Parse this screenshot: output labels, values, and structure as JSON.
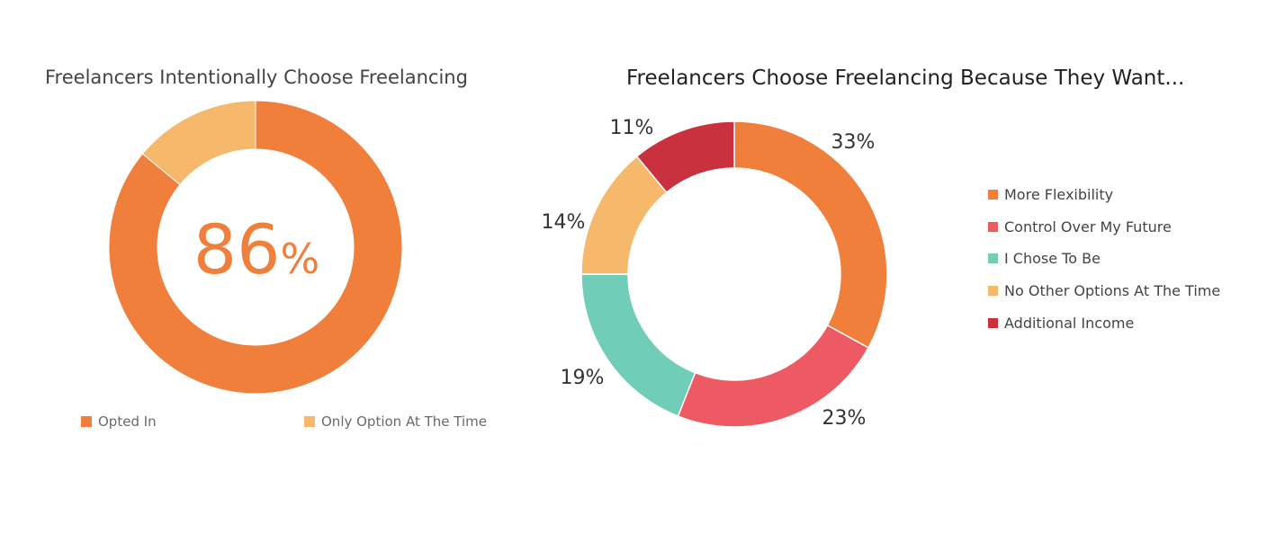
{
  "chart_data": [
    {
      "type": "pie",
      "variant": "donut",
      "title": "Freelancers Intentionally Choose Freelancing",
      "center_value": "86",
      "center_unit": "%",
      "series": [
        {
          "name": "Opted In",
          "value": 86,
          "color": "#F07F3C"
        },
        {
          "name": "Only Option At The Time",
          "value": 14,
          "color": "#F6B96B"
        }
      ],
      "legend_position": "bottom"
    },
    {
      "type": "pie",
      "variant": "donut",
      "title": "Freelancers Choose Freelancing Because They Want...",
      "series": [
        {
          "name": "More Flexibility",
          "value": 33,
          "label": "33%",
          "color": "#F07F3C"
        },
        {
          "name": "Control Over My Future",
          "value": 23,
          "label": "23%",
          "color": "#EE5A63"
        },
        {
          "name": "I Chose To Be",
          "value": 19,
          "label": "19%",
          "color": "#6FCDB8"
        },
        {
          "name": "No Other Options At The Time",
          "value": 14,
          "label": "14%",
          "color": "#F6B96B"
        },
        {
          "name": "Additional Income",
          "value": 11,
          "label": "11%",
          "color": "#C9313F"
        }
      ],
      "legend_position": "right"
    }
  ]
}
